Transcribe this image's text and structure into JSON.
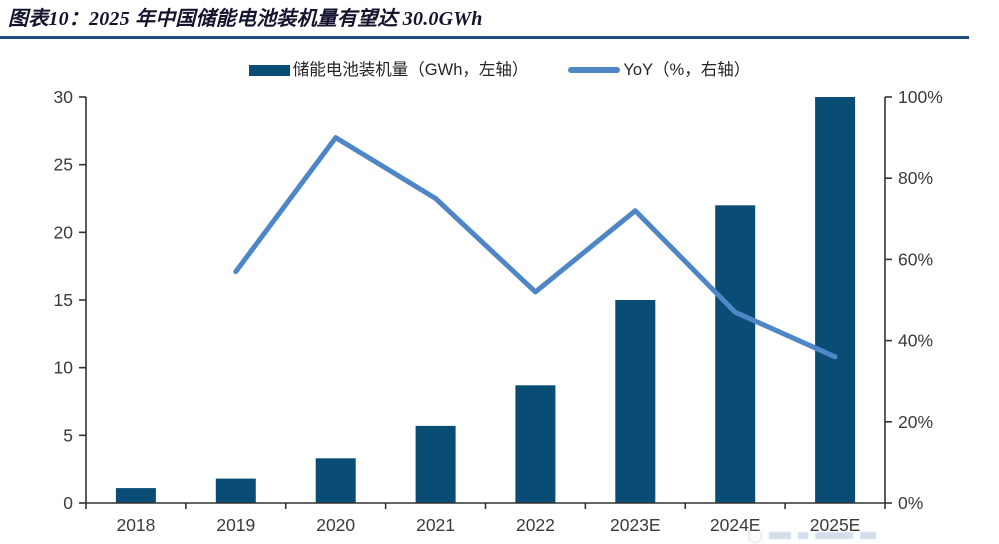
{
  "figure": {
    "title": "图表10：2025 年中国储能电池装机量有望达 30.0GWh"
  },
  "colors": {
    "bar": "#094d75",
    "line": "#4e86c6",
    "axis": "#333333",
    "tick_text": "#3a3a3a",
    "title_text": "#14142e",
    "rule": "#1f4c7d"
  },
  "chart_data": {
    "type": "combo: bar + line (dual axis)",
    "title": "2025 年中国储能电池装机量有望达 30.0GWh",
    "categories": [
      "2018",
      "2019",
      "2020",
      "2021",
      "2022",
      "2023E",
      "2024E",
      "2025E"
    ],
    "series": [
      {
        "name": "储能电池装机量（GWh，左轴）",
        "type": "bar",
        "axis": "left",
        "values": [
          1.1,
          1.8,
          3.3,
          5.7,
          8.7,
          15.0,
          22.0,
          30.0
        ]
      },
      {
        "name": "YoY（%，右轴）",
        "type": "line",
        "axis": "right",
        "values": [
          null,
          57,
          90,
          75,
          52,
          72,
          47,
          36
        ]
      }
    ],
    "left_axis": {
      "min": 0,
      "max": 30,
      "step": 5,
      "ticks": [
        "0",
        "5",
        "10",
        "15",
        "20",
        "25",
        "30"
      ]
    },
    "right_axis": {
      "min": 0,
      "max": 100,
      "step": 20,
      "ticks": [
        "0%",
        "20%",
        "40%",
        "60%",
        "80%",
        "100%"
      ]
    },
    "legend_position": "top",
    "grid": false
  }
}
